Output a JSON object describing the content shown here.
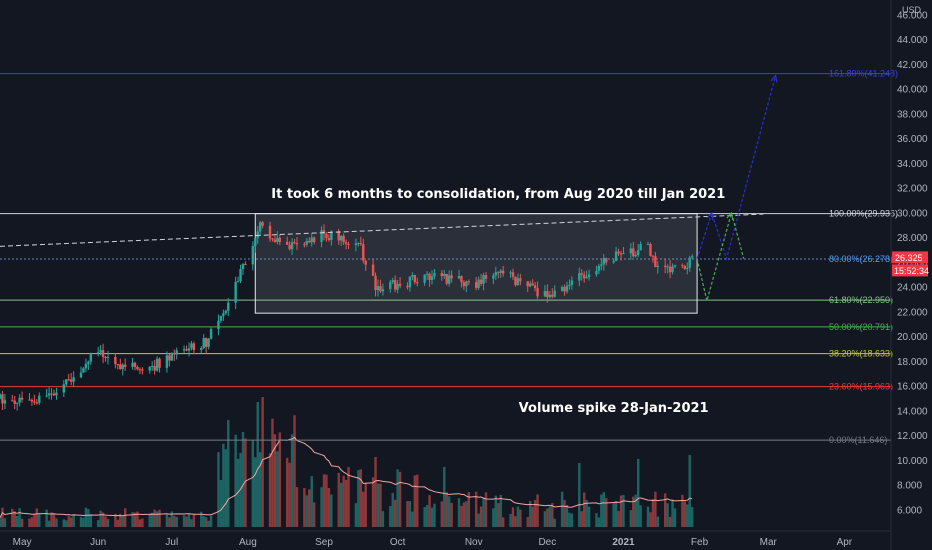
{
  "chart_data": {
    "type": "candlestick",
    "currency": "USD",
    "y_axis": {
      "ylim": [
        4.3,
        47.2
      ],
      "ticks": [
        "46.000",
        "44.000",
        "42.000",
        "40.000",
        "38.000",
        "36.000",
        "34.000",
        "32.000",
        "30.000",
        "28.000",
        "26.000",
        "24.000",
        "22.000",
        "20.000",
        "18.000",
        "16.000",
        "14.000",
        "12.000",
        "10.000",
        "8.000",
        "6.000"
      ],
      "scale": "linear"
    },
    "x_axis": {
      "ticks": [
        {
          "label": "May",
          "date": "2020-05-01"
        },
        {
          "label": "Jun",
          "date": "2020-06-01"
        },
        {
          "label": "Jul",
          "date": "2020-07-01"
        },
        {
          "label": "Aug",
          "date": "2020-08-01"
        },
        {
          "label": "Sep",
          "date": "2020-09-01"
        },
        {
          "label": "Oct",
          "date": "2020-10-01"
        },
        {
          "label": "Nov",
          "date": "2020-11-01"
        },
        {
          "label": "Dec",
          "date": "2020-12-01"
        },
        {
          "label": "2021",
          "date": "2021-01-01"
        },
        {
          "label": "Feb",
          "date": "2021-02-01"
        },
        {
          "label": "Mar",
          "date": "2021-03-01"
        },
        {
          "label": "Apr",
          "date": "2021-04-01"
        }
      ],
      "xlim": [
        "2020-04-22",
        "2021-04-20"
      ]
    },
    "price_path": [
      {
        "date": "2020-04-22",
        "price": 15.0
      },
      {
        "date": "2020-05-10",
        "price": 14.9
      },
      {
        "date": "2020-05-20",
        "price": 16.4
      },
      {
        "date": "2020-05-27",
        "price": 18.0
      },
      {
        "date": "2020-06-01",
        "price": 18.6
      },
      {
        "date": "2020-06-10",
        "price": 17.6
      },
      {
        "date": "2020-06-20",
        "price": 17.3
      },
      {
        "date": "2020-07-01",
        "price": 18.4
      },
      {
        "date": "2020-07-15",
        "price": 19.6
      },
      {
        "date": "2020-07-25",
        "price": 23.2
      },
      {
        "date": "2020-08-01",
        "price": 26.4
      },
      {
        "date": "2020-08-06",
        "price": 28.8
      },
      {
        "date": "2020-08-15",
        "price": 27.2
      },
      {
        "date": "2020-09-01",
        "price": 28.3
      },
      {
        "date": "2020-09-15",
        "price": 27.6
      },
      {
        "date": "2020-09-22",
        "price": 24.0
      },
      {
        "date": "2020-10-01",
        "price": 24.2
      },
      {
        "date": "2020-10-15",
        "price": 25.0
      },
      {
        "date": "2020-11-01",
        "price": 24.2
      },
      {
        "date": "2020-11-10",
        "price": 25.4
      },
      {
        "date": "2020-11-20",
        "price": 24.4
      },
      {
        "date": "2020-12-01",
        "price": 23.2
      },
      {
        "date": "2020-12-15",
        "price": 24.9
      },
      {
        "date": "2020-12-25",
        "price": 26.2
      },
      {
        "date": "2021-01-05",
        "price": 26.9
      },
      {
        "date": "2021-01-10",
        "price": 27.5
      },
      {
        "date": "2021-01-15",
        "price": 25.6
      },
      {
        "date": "2021-01-25",
        "price": 25.5
      },
      {
        "date": "2021-01-30",
        "price": 26.3
      }
    ],
    "last_price": "26.325",
    "countdown": "15:52:34",
    "fibonacci": [
      {
        "label": "161.80%(41.248)",
        "value": 41.248,
        "color": "#3d3fd8"
      },
      {
        "label": "100.00%(29.936)",
        "value": 29.936,
        "color": "#d1d4dc"
      },
      {
        "label": "80.00%(26.278)",
        "value": 26.278,
        "color": "#5b9cf6"
      },
      {
        "label": "61.80%(22.950)",
        "value": 22.95,
        "color": "#81c784"
      },
      {
        "label": "50.00%(20.791)",
        "value": 20.791,
        "color": "#4caf50"
      },
      {
        "label": "38.20%(18.633)",
        "value": 18.633,
        "color": "#c0ca33"
      },
      {
        "label": "23.60%(15.963)",
        "value": 15.963,
        "color": "#f23645"
      },
      {
        "label": "0.00%(11.646)",
        "value": 11.646,
        "color": "#787b86"
      }
    ],
    "consolidation_box": {
      "start": "2020-08-04",
      "end": "2021-01-31",
      "top": 29.936,
      "bottom": 21.9
    },
    "trendline": {
      "start": {
        "date": "2020-04-22",
        "price": 27.3
      },
      "end": {
        "date": "2021-02-27",
        "price": 29.9
      }
    },
    "projections": [
      {
        "name": "blue",
        "color": "#2e2ed8",
        "points": [
          {
            "date": "2021-01-31",
            "price": 26.3
          },
          {
            "date": "2021-02-06",
            "price": 30.0
          },
          {
            "date": "2021-02-12",
            "price": 26.3
          },
          {
            "date": "2021-03-04",
            "price": 41.1
          }
        ]
      },
      {
        "name": "green",
        "color": "#4caf50",
        "points": [
          {
            "date": "2021-01-31",
            "price": 26.3
          },
          {
            "date": "2021-02-04",
            "price": 22.9
          },
          {
            "date": "2021-02-14",
            "price": 30.0
          },
          {
            "date": "2021-02-19",
            "price": 26.3
          }
        ]
      }
    ],
    "annotations": [
      {
        "text": "It took 6 months to consolidation, from Aug 2020 till Jan 2021",
        "date": "2020-11-11",
        "price": 31.2
      },
      {
        "text": "Volume spike 28-Jan-2021",
        "date": "2020-12-28",
        "price": 13.9
      }
    ],
    "volume": {
      "ma_color": "#f5a5a0",
      "up_color": "#26a69a",
      "down_color": "#ef5350"
    }
  }
}
